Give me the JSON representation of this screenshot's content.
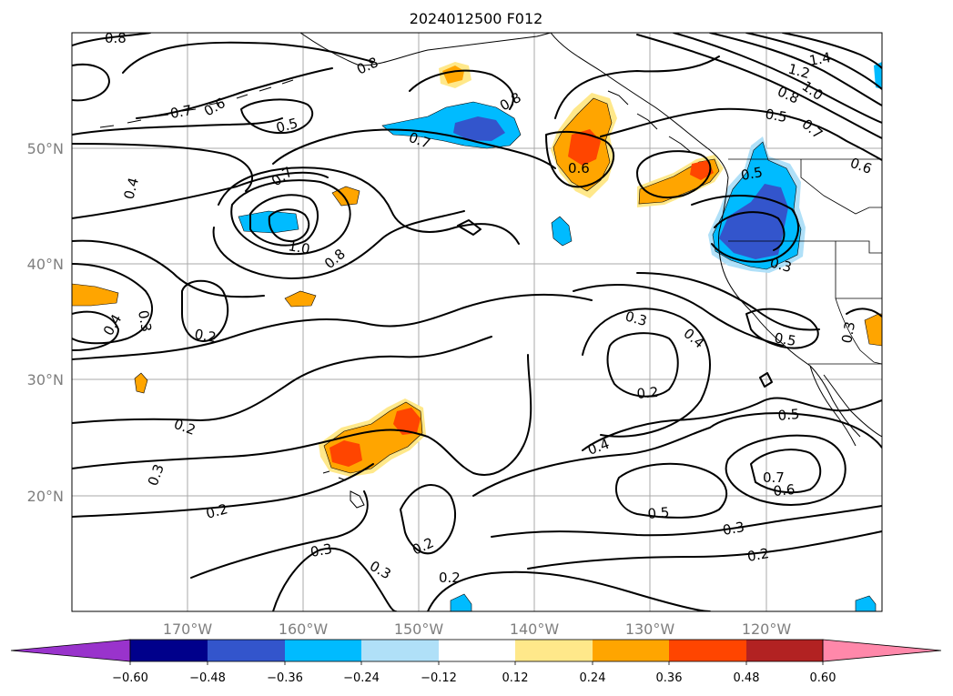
{
  "title": "2024012500 F012",
  "latitude_labels": [
    "50°N",
    "40°N",
    "30°N",
    "20°N"
  ],
  "longitude_labels": [
    "170°W",
    "160°W",
    "150°W",
    "140°W",
    "130°W",
    "120°W"
  ],
  "colorbar": {
    "ticks": [
      "−0.60",
      "−0.48",
      "−0.36",
      "−0.24",
      "−0.12",
      "0.12",
      "0.24",
      "0.36",
      "0.48",
      "0.60"
    ],
    "colors": [
      "#9933cc",
      "#00008b",
      "#3355cc",
      "#00bbff",
      "#b0e0f8",
      "#ffffff",
      "#ffe88a",
      "#ffa500",
      "#ff4500",
      "#b22222",
      "#ff88aa"
    ]
  },
  "contour_labels": {
    "c1": "0.8",
    "c2": "0.8",
    "c3": "1.4",
    "c4": "1.2",
    "c5": "1.0",
    "c6": "0.8",
    "c7": "0.7",
    "c8": "0.6",
    "c9": "0.5",
    "c10": "0.7",
    "c11": "0.8",
    "c12": "0.5",
    "c13": "0.6",
    "c14": "0.7",
    "c15": "0.5",
    "c16": "0.4",
    "c17": "0.7",
    "c18": "1.0",
    "c19": "0.8",
    "c20": "0.3",
    "c21": "0.4",
    "c22": "0.3",
    "c23": "0.2",
    "c24": "0.3",
    "c25": "0.4",
    "c26": "0.5",
    "c27": "0.3",
    "c28": "0.2",
    "c29": "0.2",
    "c30": "0.3",
    "c31": "0.4",
    "c32": "0.5",
    "c33": "0.6",
    "c34": "0.7",
    "c35": "0.5",
    "c36": "0.3",
    "c37": "0.2",
    "c38": "0.2",
    "c39": "0.3",
    "c40": "0.3",
    "c41": "0.2",
    "c42": "0.2",
    "c43": "0.6"
  }
}
